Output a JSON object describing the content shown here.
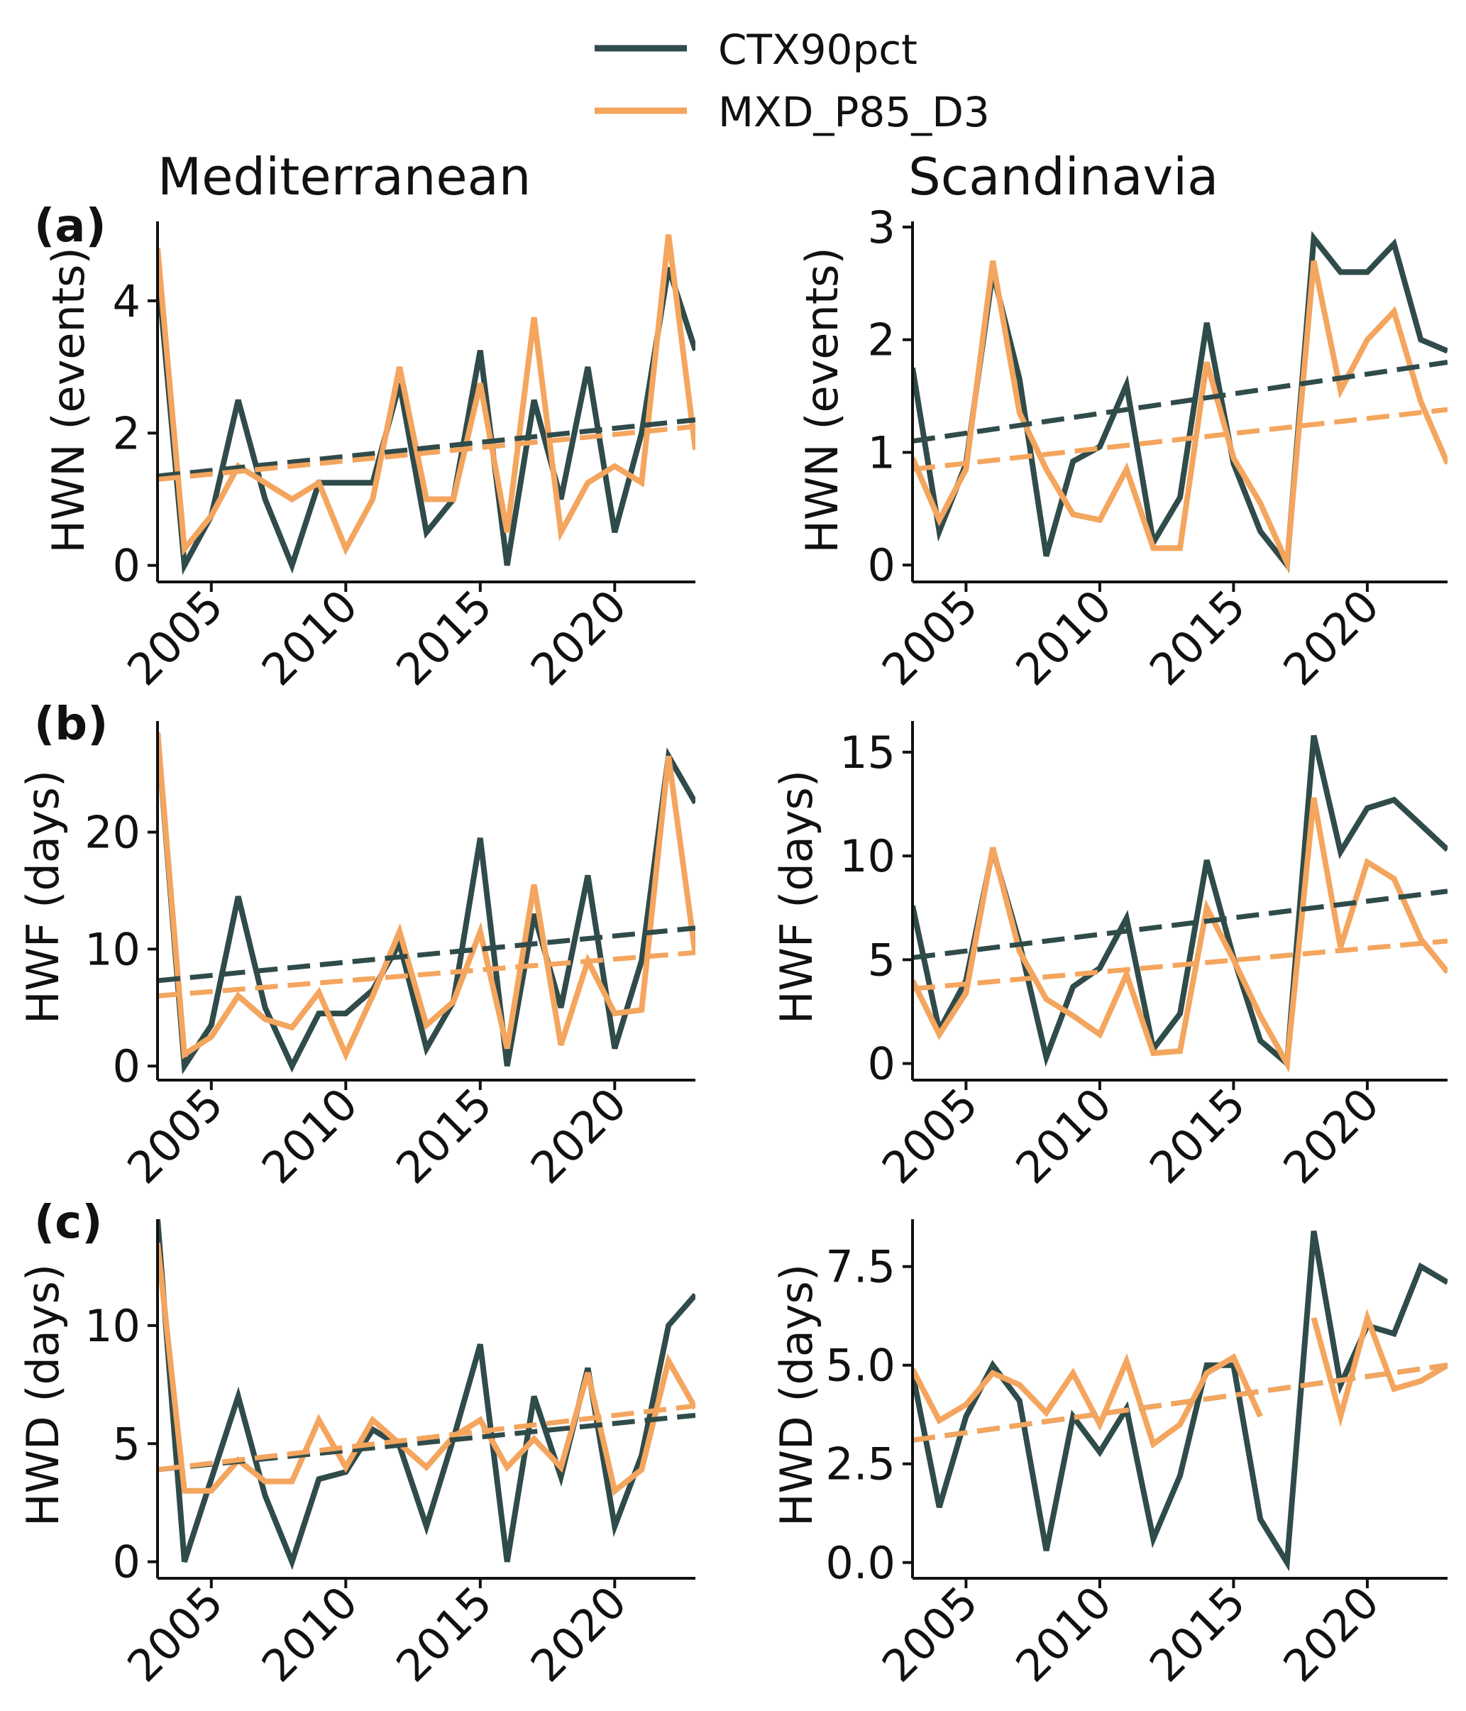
{
  "legend": [
    {
      "name": "CTX90pct",
      "color": "#2f4b4a"
    },
    {
      "name": "MXD_P85_D3",
      "color": "#f4a55e"
    }
  ],
  "columns": [
    "Mediterranean",
    "Scandinavia"
  ],
  "rows": [
    {
      "panel": "(a)",
      "ylabel": "HWN (events)"
    },
    {
      "panel": "(b)",
      "ylabel": "HWF (days)"
    },
    {
      "panel": "(c)",
      "ylabel": "HWD (days)"
    }
  ],
  "chart_data": [
    {
      "type": "line",
      "region": "Mediterranean",
      "panel": "(a)",
      "metric": "HWN (events)",
      "x": [
        2003,
        2004,
        2005,
        2006,
        2007,
        2008,
        2009,
        2010,
        2011,
        2012,
        2013,
        2014,
        2015,
        2016,
        2017,
        2018,
        2019,
        2020,
        2021,
        2022,
        2023
      ],
      "xlim": [
        2003,
        2023
      ],
      "xticks": [
        2005,
        2010,
        2015,
        2020
      ],
      "xticklabels": [
        "2005",
        "2010",
        "2015",
        "2020"
      ],
      "ylim": [
        -0.25,
        5.2
      ],
      "yticks": [
        0,
        2,
        4
      ],
      "yticklabels": [
        "0",
        "2",
        "4"
      ],
      "series": [
        {
          "name": "CTX90pct",
          "values": [
            4.5,
            0,
            0.75,
            2.5,
            1,
            0,
            1.25,
            1.25,
            1.25,
            2.75,
            0.5,
            1,
            3.25,
            0,
            2.5,
            1,
            3,
            0.5,
            2,
            4.5,
            3.25
          ]
        },
        {
          "name": "MXD_P85_D3",
          "values": [
            4.8,
            0.25,
            0.75,
            1.5,
            1.25,
            1,
            1.25,
            0.25,
            1,
            3,
            1,
            1,
            2.75,
            0.5,
            3.75,
            0.5,
            1.25,
            1.5,
            1.25,
            5,
            1.75
          ]
        }
      ],
      "trends": [
        {
          "name": "CTX90pct",
          "start": 1.35,
          "end": 2.2
        },
        {
          "name": "MXD_P85_D3",
          "start": 1.3,
          "end": 2.1
        }
      ]
    },
    {
      "type": "line",
      "region": "Scandinavia",
      "panel": "(a)",
      "metric": "HWN (events)",
      "x": [
        2003,
        2004,
        2005,
        2006,
        2007,
        2008,
        2009,
        2010,
        2011,
        2012,
        2013,
        2014,
        2015,
        2016,
        2017,
        2018,
        2019,
        2020,
        2021,
        2022,
        2023
      ],
      "xlim": [
        2003,
        2023
      ],
      "xticks": [
        2005,
        2010,
        2015,
        2020
      ],
      "xticklabels": [
        "2005",
        "2010",
        "2015",
        "2020"
      ],
      "ylim": [
        -0.15,
        3.05
      ],
      "yticks": [
        0,
        1,
        2,
        3
      ],
      "yticklabels": [
        "0",
        "1",
        "2",
        "3"
      ],
      "series": [
        {
          "name": "CTX90pct",
          "values": [
            1.75,
            0.3,
            0.9,
            2.6,
            1.65,
            0.08,
            0.92,
            1.05,
            1.6,
            0.2,
            0.6,
            2.15,
            0.9,
            0.3,
            0,
            2.9,
            2.6,
            2.6,
            2.85,
            2,
            1.9
          ]
        },
        {
          "name": "MXD_P85_D3",
          "values": [
            0.95,
            0.4,
            0.85,
            2.7,
            1.35,
            0.85,
            0.45,
            0.4,
            0.85,
            0.15,
            0.15,
            1.8,
            0.95,
            0.55,
            0.02,
            2.7,
            1.55,
            2,
            2.25,
            1.45,
            0.9
          ]
        }
      ],
      "trends": [
        {
          "name": "CTX90pct",
          "start": 1.1,
          "end": 1.8
        },
        {
          "name": "MXD_P85_D3",
          "start": 0.85,
          "end": 1.38
        }
      ]
    },
    {
      "type": "line",
      "region": "Mediterranean",
      "panel": "(b)",
      "metric": "HWF (days)",
      "x": [
        2003,
        2004,
        2005,
        2006,
        2007,
        2008,
        2009,
        2010,
        2011,
        2012,
        2013,
        2014,
        2015,
        2016,
        2017,
        2018,
        2019,
        2020,
        2021,
        2022,
        2023
      ],
      "xlim": [
        2003,
        2023
      ],
      "xticks": [
        2005,
        2010,
        2015,
        2020
      ],
      "xticklabels": [
        "2005",
        "2010",
        "2015",
        "2020"
      ],
      "ylim": [
        -1.2,
        29.5
      ],
      "yticks": [
        0,
        10,
        20
      ],
      "yticklabels": [
        "0",
        "10",
        "20"
      ],
      "series": [
        {
          "name": "CTX90pct",
          "values": [
            28.5,
            0,
            3.5,
            14.5,
            5,
            0,
            4.5,
            4.5,
            6.5,
            10.5,
            1.5,
            5.5,
            19.5,
            0,
            13,
            5,
            16.3,
            1.5,
            9,
            26.5,
            22.5
          ]
        },
        {
          "name": "MXD_P85_D3",
          "values": [
            28.5,
            1,
            2.5,
            6,
            4,
            3.3,
            6.3,
            1,
            6,
            11.5,
            3.5,
            5.5,
            11.5,
            1.5,
            15.5,
            1.8,
            9,
            4.5,
            4.8,
            26.5,
            9.5
          ]
        }
      ],
      "trends": [
        {
          "name": "CTX90pct",
          "start": 7.3,
          "end": 11.8
        },
        {
          "name": "MXD_P85_D3",
          "start": 6,
          "end": 9.7
        }
      ]
    },
    {
      "type": "line",
      "region": "Scandinavia",
      "panel": "(b)",
      "metric": "HWF (days)",
      "x": [
        2003,
        2004,
        2005,
        2006,
        2007,
        2008,
        2009,
        2010,
        2011,
        2012,
        2013,
        2014,
        2015,
        2016,
        2017,
        2018,
        2019,
        2020,
        2021,
        2022,
        2023
      ],
      "xlim": [
        2003,
        2023
      ],
      "xticks": [
        2005,
        2010,
        2015,
        2020
      ],
      "xticklabels": [
        "2005",
        "2010",
        "2015",
        "2020"
      ],
      "ylim": [
        -0.8,
        16.5
      ],
      "yticks": [
        0,
        5,
        10,
        15
      ],
      "yticklabels": [
        "0",
        "5",
        "10",
        "15"
      ],
      "series": [
        {
          "name": "CTX90pct",
          "values": [
            7.6,
            1.6,
            4,
            10.3,
            5.8,
            0.3,
            3.7,
            4.6,
            7,
            0.7,
            2.4,
            9.8,
            5.1,
            1.1,
            0,
            15.8,
            10.2,
            12.3,
            12.7,
            11.5,
            10.3
          ]
        },
        {
          "name": "MXD_P85_D3",
          "values": [
            4,
            1.4,
            3.4,
            10.4,
            5.4,
            3.1,
            2.3,
            1.4,
            4.3,
            0.5,
            0.6,
            7.5,
            5,
            2.3,
            0,
            12.8,
            5.6,
            9.7,
            8.9,
            6,
            4.4
          ]
        }
      ],
      "trends": [
        {
          "name": "CTX90pct",
          "start": 5.1,
          "end": 8.3
        },
        {
          "name": "MXD_P85_D3",
          "start": 3.6,
          "end": 5.9
        }
      ]
    },
    {
      "type": "line",
      "region": "Mediterranean",
      "panel": "(c)",
      "metric": "HWD (days)",
      "x": [
        2003,
        2004,
        2005,
        2006,
        2007,
        2008,
        2009,
        2010,
        2011,
        2012,
        2013,
        2014,
        2015,
        2016,
        2017,
        2018,
        2019,
        2020,
        2021,
        2022,
        2023
      ],
      "xlim": [
        2003,
        2023
      ],
      "xticks": [
        2005,
        2010,
        2015,
        2020
      ],
      "xticklabels": [
        "2005",
        "2010",
        "2015",
        "2020"
      ],
      "ylim": [
        -0.7,
        14.5
      ],
      "yticks": [
        0,
        5,
        10
      ],
      "yticklabels": [
        "0",
        "5",
        "10"
      ],
      "series": [
        {
          "name": "CTX90pct",
          "values": [
            14.5,
            0,
            3.5,
            7,
            2.8,
            0,
            3.5,
            3.8,
            5.6,
            4.9,
            1.5,
            5.2,
            9.2,
            0,
            7,
            3.6,
            8.2,
            1.5,
            4.5,
            10,
            11.3
          ]
        },
        {
          "name": "MXD_P85_D3",
          "values": [
            13.5,
            3,
            3,
            4.3,
            3.4,
            3.4,
            6,
            4,
            6,
            5,
            4,
            5.3,
            6,
            4,
            5.2,
            4,
            8,
            3,
            3.9,
            8.5,
            6.5
          ]
        }
      ],
      "trends": [
        {
          "name": "CTX90pct",
          "start": 3.9,
          "end": 6.2
        },
        {
          "name": "MXD_P85_D3",
          "start": 3.9,
          "end": 6.6
        }
      ]
    },
    {
      "type": "line",
      "region": "Scandinavia",
      "panel": "(c)",
      "metric": "HWD (days)",
      "x": [
        2003,
        2004,
        2005,
        2006,
        2007,
        2008,
        2009,
        2010,
        2011,
        2012,
        2013,
        2014,
        2015,
        2016,
        2017,
        2018,
        2019,
        2020,
        2021,
        2022,
        2023
      ],
      "xlim": [
        2003,
        2023
      ],
      "xticks": [
        2005,
        2010,
        2015,
        2020
      ],
      "xticklabels": [
        "2005",
        "2010",
        "2015",
        "2020"
      ],
      "ylim": [
        -0.4,
        8.7
      ],
      "yticks": [
        0,
        2.5,
        5,
        7.5
      ],
      "yticklabels": [
        "0.0",
        "2.5",
        "5.0",
        "7.5"
      ],
      "series": [
        {
          "name": "CTX90pct",
          "values": [
            4.8,
            1.4,
            3.7,
            5,
            4.1,
            0.3,
            3.7,
            2.8,
            3.9,
            0.6,
            2.2,
            5,
            5,
            1.1,
            0,
            8.4,
            4.5,
            6,
            5.8,
            7.5,
            7.1
          ]
        },
        {
          "name": "MXD_P85_D3",
          "values": [
            4.9,
            3.6,
            4,
            4.8,
            4.5,
            3.8,
            4.8,
            3.5,
            5.1,
            3,
            3.5,
            4.8,
            5.2,
            3.7,
            null,
            6.2,
            3.7,
            6.2,
            4.4,
            4.6,
            5
          ]
        }
      ],
      "trends": [
        {
          "name": "CTX90pct",
          "start": 3.1,
          "end": 5.0
        },
        {
          "name": "MXD_P85_D3",
          "start": 3.1,
          "end": 5.0
        }
      ]
    }
  ]
}
